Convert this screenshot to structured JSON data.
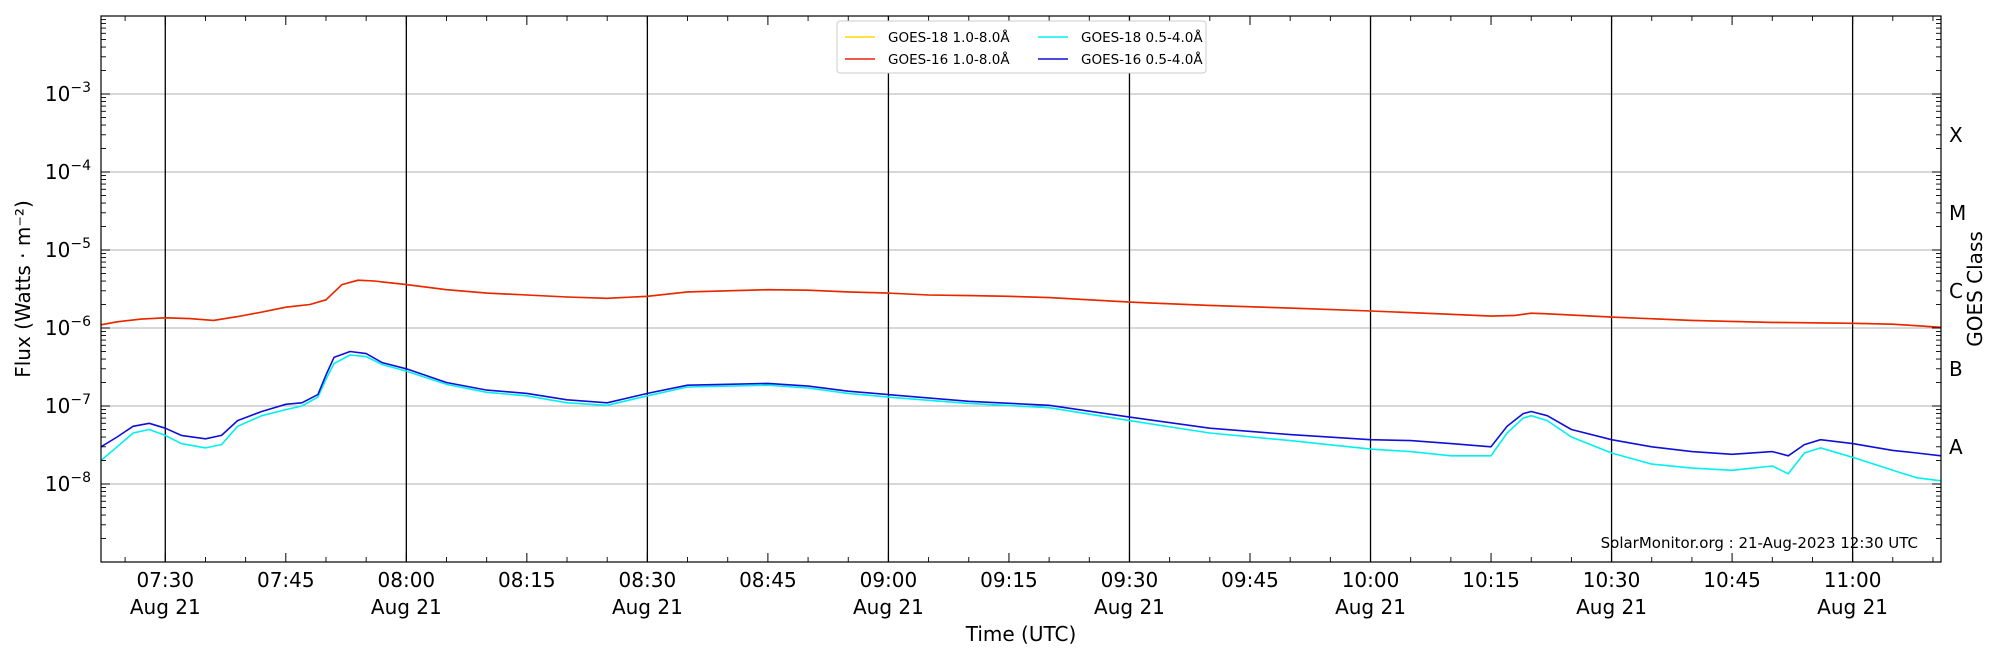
{
  "chart_data": {
    "type": "line",
    "xlabel": "Time (UTC)",
    "ylabel": "Flux (Watts · m⁻²)",
    "ylabel_right": "GOES Class",
    "y_scale": "log",
    "ylim": [
      1e-09,
      0.01
    ],
    "xlim": [
      "2023-08-21 07:22",
      "2023-08-21 11:11"
    ],
    "grid": "horizontal at decades",
    "legend_position": "top-center",
    "y_ticks": [
      {
        "value": 1e-08,
        "base": "10",
        "exp": "−8"
      },
      {
        "value": 1e-07,
        "base": "10",
        "exp": "−7"
      },
      {
        "value": 1e-06,
        "base": "10",
        "exp": "−6"
      },
      {
        "value": 1e-05,
        "base": "10",
        "exp": "−5"
      },
      {
        "value": 0.0001,
        "base": "10",
        "exp": "−4"
      },
      {
        "value": 0.001,
        "base": "10",
        "exp": "−3"
      }
    ],
    "goes_classes": [
      {
        "label": "A",
        "value": 3e-08
      },
      {
        "label": "B",
        "value": 3e-07
      },
      {
        "label": "C",
        "value": 3e-06
      },
      {
        "label": "M",
        "value": 3e-05
      },
      {
        "label": "X",
        "value": 0.0003
      }
    ],
    "x_ticks": [
      {
        "time": "07:30",
        "date": "Aug 21"
      },
      {
        "time": "07:45",
        "date": ""
      },
      {
        "time": "08:00",
        "date": "Aug 21"
      },
      {
        "time": "08:15",
        "date": ""
      },
      {
        "time": "08:30",
        "date": "Aug 21"
      },
      {
        "time": "08:45",
        "date": ""
      },
      {
        "time": "09:00",
        "date": "Aug 21"
      },
      {
        "time": "09:15",
        "date": ""
      },
      {
        "time": "09:30",
        "date": "Aug 21"
      },
      {
        "time": "09:45",
        "date": ""
      },
      {
        "time": "10:00",
        "date": "Aug 21"
      },
      {
        "time": "10:15",
        "date": ""
      },
      {
        "time": "10:30",
        "date": "Aug 21"
      },
      {
        "time": "10:45",
        "date": ""
      },
      {
        "time": "11:00",
        "date": "Aug 21"
      }
    ],
    "vertical_lines": [
      "07:30",
      "08:00",
      "08:30",
      "09:00",
      "09:30",
      "10:00",
      "10:30",
      "11:00"
    ],
    "annotation": "SolarMonitor.org : 21-Aug-2023 12:30 UTC",
    "series": [
      {
        "name": "GOES-18 1.0-8.0Å",
        "color": "#ffd700",
        "x": [
          "07:22",
          "07:24",
          "07:27",
          "07:30",
          "07:33",
          "07:36",
          "07:39",
          "07:42",
          "07:45",
          "07:48",
          "07:50",
          "07:52",
          "07:54",
          "07:56",
          "07:58",
          "08:00",
          "08:05",
          "08:10",
          "08:15",
          "08:20",
          "08:25",
          "08:30",
          "08:35",
          "08:40",
          "08:45",
          "08:50",
          "08:55",
          "09:00",
          "09:05",
          "09:10",
          "09:15",
          "09:20",
          "09:25",
          "09:30",
          "09:40",
          "09:50",
          "10:00",
          "10:10",
          "10:15",
          "10:18",
          "10:20",
          "10:22",
          "10:30",
          "10:40",
          "10:50",
          "11:00",
          "11:05",
          "11:11"
        ],
        "y": [
          1.1e-06,
          1.2e-06,
          1.3e-06,
          1.35e-06,
          1.32e-06,
          1.25e-06,
          1.4e-06,
          1.6e-06,
          1.85e-06,
          2e-06,
          2.3e-06,
          3.6e-06,
          4.1e-06,
          4e-06,
          3.8e-06,
          3.6e-06,
          3.1e-06,
          2.8e-06,
          2.65e-06,
          2.5e-06,
          2.4e-06,
          2.55e-06,
          2.9e-06,
          3e-06,
          3.1e-06,
          3.05e-06,
          2.9e-06,
          2.8e-06,
          2.65e-06,
          2.6e-06,
          2.55e-06,
          2.45e-06,
          2.3e-06,
          2.15e-06,
          1.95e-06,
          1.8e-06,
          1.65e-06,
          1.5e-06,
          1.42e-06,
          1.45e-06,
          1.55e-06,
          1.52e-06,
          1.38e-06,
          1.25e-06,
          1.18e-06,
          1.15e-06,
          1.12e-06,
          1.02e-06
        ]
      },
      {
        "name": "GOES-16 1.0-8.0Å",
        "color": "#e8250c",
        "x": [
          "07:22",
          "07:24",
          "07:27",
          "07:30",
          "07:33",
          "07:36",
          "07:39",
          "07:42",
          "07:45",
          "07:48",
          "07:50",
          "07:52",
          "07:54",
          "07:56",
          "07:58",
          "08:00",
          "08:05",
          "08:10",
          "08:15",
          "08:20",
          "08:25",
          "08:30",
          "08:35",
          "08:40",
          "08:45",
          "08:50",
          "08:55",
          "09:00",
          "09:05",
          "09:10",
          "09:15",
          "09:20",
          "09:25",
          "09:30",
          "09:40",
          "09:50",
          "10:00",
          "10:10",
          "10:15",
          "10:18",
          "10:20",
          "10:22",
          "10:30",
          "10:40",
          "10:50",
          "11:00",
          "11:05",
          "11:11"
        ],
        "y": [
          1.1e-06,
          1.2e-06,
          1.3e-06,
          1.35e-06,
          1.32e-06,
          1.25e-06,
          1.4e-06,
          1.6e-06,
          1.85e-06,
          2e-06,
          2.3e-06,
          3.6e-06,
          4.1e-06,
          4e-06,
          3.8e-06,
          3.6e-06,
          3.1e-06,
          2.8e-06,
          2.65e-06,
          2.5e-06,
          2.4e-06,
          2.55e-06,
          2.9e-06,
          3e-06,
          3.1e-06,
          3.05e-06,
          2.9e-06,
          2.8e-06,
          2.65e-06,
          2.6e-06,
          2.55e-06,
          2.45e-06,
          2.3e-06,
          2.15e-06,
          1.95e-06,
          1.8e-06,
          1.65e-06,
          1.5e-06,
          1.42e-06,
          1.45e-06,
          1.55e-06,
          1.52e-06,
          1.38e-06,
          1.25e-06,
          1.18e-06,
          1.15e-06,
          1.12e-06,
          1.02e-06
        ]
      },
      {
        "name": "GOES-18 0.5-4.0Å",
        "color": "#00f0f0",
        "x": [
          "07:22",
          "07:24",
          "07:26",
          "07:28",
          "07:30",
          "07:32",
          "07:35",
          "07:37",
          "07:39",
          "07:42",
          "07:45",
          "07:47",
          "07:49",
          "07:50",
          "07:51",
          "07:53",
          "07:55",
          "07:57",
          "08:00",
          "08:05",
          "08:10",
          "08:15",
          "08:20",
          "08:25",
          "08:30",
          "08:35",
          "08:40",
          "08:45",
          "08:50",
          "08:55",
          "09:00",
          "09:10",
          "09:20",
          "09:30",
          "09:40",
          "09:50",
          "10:00",
          "10:05",
          "10:10",
          "10:15",
          "10:17",
          "10:19",
          "10:20",
          "10:22",
          "10:25",
          "10:30",
          "10:35",
          "10:40",
          "10:45",
          "10:50",
          "10:52",
          "10:54",
          "10:56",
          "11:00",
          "11:05",
          "11:08",
          "11:11"
        ],
        "y": [
          2e-08,
          3e-08,
          4.5e-08,
          5e-08,
          4.2e-08,
          3.3e-08,
          2.9e-08,
          3.2e-08,
          5.5e-08,
          7.5e-08,
          9e-08,
          1e-07,
          1.3e-07,
          2.2e-07,
          3.5e-07,
          4.5e-07,
          4.3e-07,
          3.4e-07,
          2.8e-07,
          1.9e-07,
          1.5e-07,
          1.35e-07,
          1.1e-07,
          1.02e-07,
          1.35e-07,
          1.75e-07,
          1.8e-07,
          1.85e-07,
          1.7e-07,
          1.45e-07,
          1.3e-07,
          1.08e-07,
          9.5e-08,
          6.5e-08,
          4.5e-08,
          3.6e-08,
          2.8e-08,
          2.6e-08,
          2.3e-08,
          2.3e-08,
          4.5e-08,
          7e-08,
          7.5e-08,
          6.5e-08,
          4e-08,
          2.5e-08,
          1.8e-08,
          1.6e-08,
          1.5e-08,
          1.7e-08,
          1.35e-08,
          2.5e-08,
          2.9e-08,
          2.2e-08,
          1.5e-08,
          1.2e-08,
          1.1e-08
        ]
      },
      {
        "name": "GOES-16 0.5-4.0Å",
        "color": "#1010d8",
        "x": [
          "07:22",
          "07:24",
          "07:26",
          "07:28",
          "07:30",
          "07:32",
          "07:35",
          "07:37",
          "07:39",
          "07:42",
          "07:45",
          "07:47",
          "07:49",
          "07:50",
          "07:51",
          "07:53",
          "07:55",
          "07:57",
          "08:00",
          "08:05",
          "08:10",
          "08:15",
          "08:20",
          "08:25",
          "08:30",
          "08:35",
          "08:40",
          "08:45",
          "08:50",
          "08:55",
          "09:00",
          "09:10",
          "09:20",
          "09:30",
          "09:40",
          "09:50",
          "10:00",
          "10:05",
          "10:10",
          "10:15",
          "10:17",
          "10:19",
          "10:20",
          "10:22",
          "10:25",
          "10:30",
          "10:35",
          "10:40",
          "10:45",
          "10:50",
          "10:52",
          "10:54",
          "10:56",
          "11:00",
          "11:05",
          "11:08",
          "11:11"
        ],
        "y": [
          3e-08,
          4e-08,
          5.5e-08,
          6e-08,
          5.2e-08,
          4.2e-08,
          3.8e-08,
          4.2e-08,
          6.5e-08,
          8.5e-08,
          1.05e-07,
          1.1e-07,
          1.4e-07,
          2.5e-07,
          4.2e-07,
          5e-07,
          4.7e-07,
          3.6e-07,
          3e-07,
          2e-07,
          1.6e-07,
          1.45e-07,
          1.2e-07,
          1.1e-07,
          1.45e-07,
          1.85e-07,
          1.9e-07,
          1.95e-07,
          1.8e-07,
          1.55e-07,
          1.4e-07,
          1.15e-07,
          1.02e-07,
          7.2e-08,
          5.2e-08,
          4.3e-08,
          3.7e-08,
          3.6e-08,
          3.3e-08,
          3e-08,
          5.5e-08,
          8e-08,
          8.5e-08,
          7.5e-08,
          5e-08,
          3.7e-08,
          3e-08,
          2.6e-08,
          2.4e-08,
          2.6e-08,
          2.3e-08,
          3.2e-08,
          3.7e-08,
          3.3e-08,
          2.7e-08,
          2.5e-08,
          2.3e-08
        ]
      }
    ]
  }
}
